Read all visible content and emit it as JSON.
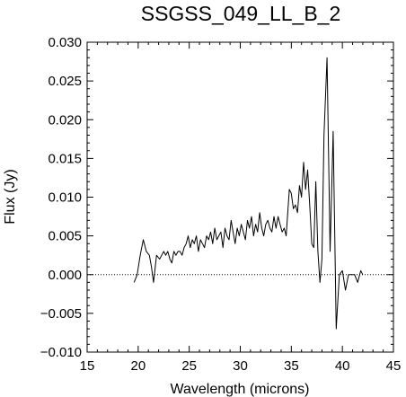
{
  "chart_data": {
    "type": "line",
    "title": "SSGSS_049_LL_B_2",
    "xlabel": "Wavelength (microns)",
    "ylabel": "Flux (Jy)",
    "xlim": [
      15,
      45
    ],
    "ylim": [
      -0.01,
      0.03
    ],
    "x_ticks": [
      15,
      20,
      25,
      30,
      35,
      40,
      45
    ],
    "y_ticks": [
      -0.01,
      -0.005,
      0.0,
      0.005,
      0.01,
      0.015,
      0.02,
      0.025,
      0.03
    ],
    "x_tick_labels": [
      "15",
      "20",
      "25",
      "30",
      "35",
      "40",
      "45"
    ],
    "y_tick_labels": [
      "−0.010",
      "−0.005",
      "0.000",
      "0.005",
      "0.010",
      "0.015",
      "0.020",
      "0.025",
      "0.030"
    ],
    "reference_line": {
      "y": 0.0,
      "style": "dotted"
    },
    "grid": false,
    "legend": "none",
    "line_color": "#000000",
    "series": [
      {
        "x": [
          19.6,
          19.9,
          20.2,
          20.5,
          20.8,
          21.1,
          21.3,
          21.5,
          21.8,
          22.1,
          22.3,
          22.5,
          22.7,
          22.9,
          23.1,
          23.3,
          23.5,
          23.7,
          23.9,
          24.1,
          24.3,
          24.5,
          24.7,
          24.9,
          25.1,
          25.3,
          25.5,
          25.7,
          25.9,
          26.1,
          26.3,
          26.5,
          26.7,
          26.9,
          27.1,
          27.3,
          27.5,
          27.7,
          27.9,
          28.1,
          28.3,
          28.5,
          28.7,
          28.9,
          29.1,
          29.3,
          29.5,
          29.7,
          29.9,
          30.1,
          30.3,
          30.5,
          30.7,
          30.9,
          31.1,
          31.3,
          31.5,
          31.7,
          31.9,
          32.1,
          32.3,
          32.5,
          32.7,
          32.9,
          33.1,
          33.3,
          33.5,
          33.7,
          33.9,
          34.1,
          34.3,
          34.5,
          34.8,
          35.0,
          35.2,
          35.4,
          35.6,
          35.8,
          36.0,
          36.2,
          36.4,
          36.6,
          36.8,
          37.0,
          37.2,
          37.4,
          37.6,
          37.8,
          38.0,
          38.2,
          38.5,
          38.8,
          39.1,
          39.4,
          39.7,
          40.0,
          40.3,
          40.6,
          40.9,
          41.2,
          41.5,
          41.8,
          42.0
        ],
        "y": [
          -0.001,
          0.0,
          0.0025,
          0.0045,
          0.003,
          0.0025,
          0.001,
          -0.001,
          0.0025,
          0.002,
          0.0025,
          0.003,
          0.0025,
          0.003,
          0.002,
          0.0015,
          0.003,
          0.0025,
          0.003,
          0.003,
          0.0025,
          0.0035,
          0.004,
          0.005,
          0.0035,
          0.0045,
          0.004,
          0.005,
          0.003,
          0.0045,
          0.004,
          0.0035,
          0.005,
          0.0045,
          0.0055,
          0.004,
          0.006,
          0.0045,
          0.005,
          0.0055,
          0.0035,
          0.006,
          0.005,
          0.0045,
          0.007,
          0.0055,
          0.004,
          0.006,
          0.005,
          0.0065,
          0.0055,
          0.0045,
          0.007,
          0.006,
          0.0075,
          0.005,
          0.0065,
          0.0055,
          0.008,
          0.006,
          0.005,
          0.0065,
          0.007,
          0.006,
          0.0055,
          0.0075,
          0.006,
          0.0075,
          0.0065,
          0.0055,
          0.006,
          0.005,
          0.011,
          0.0105,
          0.0085,
          0.009,
          0.008,
          0.0115,
          0.01,
          0.0145,
          0.011,
          0.0135,
          0.009,
          0.004,
          0.0035,
          0.012,
          0.003,
          -0.001,
          0.002,
          0.018,
          0.028,
          0.003,
          0.0185,
          -0.007,
          0.0,
          0.0005,
          -0.002,
          0.0,
          0.0,
          0.0,
          -0.001,
          0.0005,
          0.0
        ]
      }
    ]
  }
}
